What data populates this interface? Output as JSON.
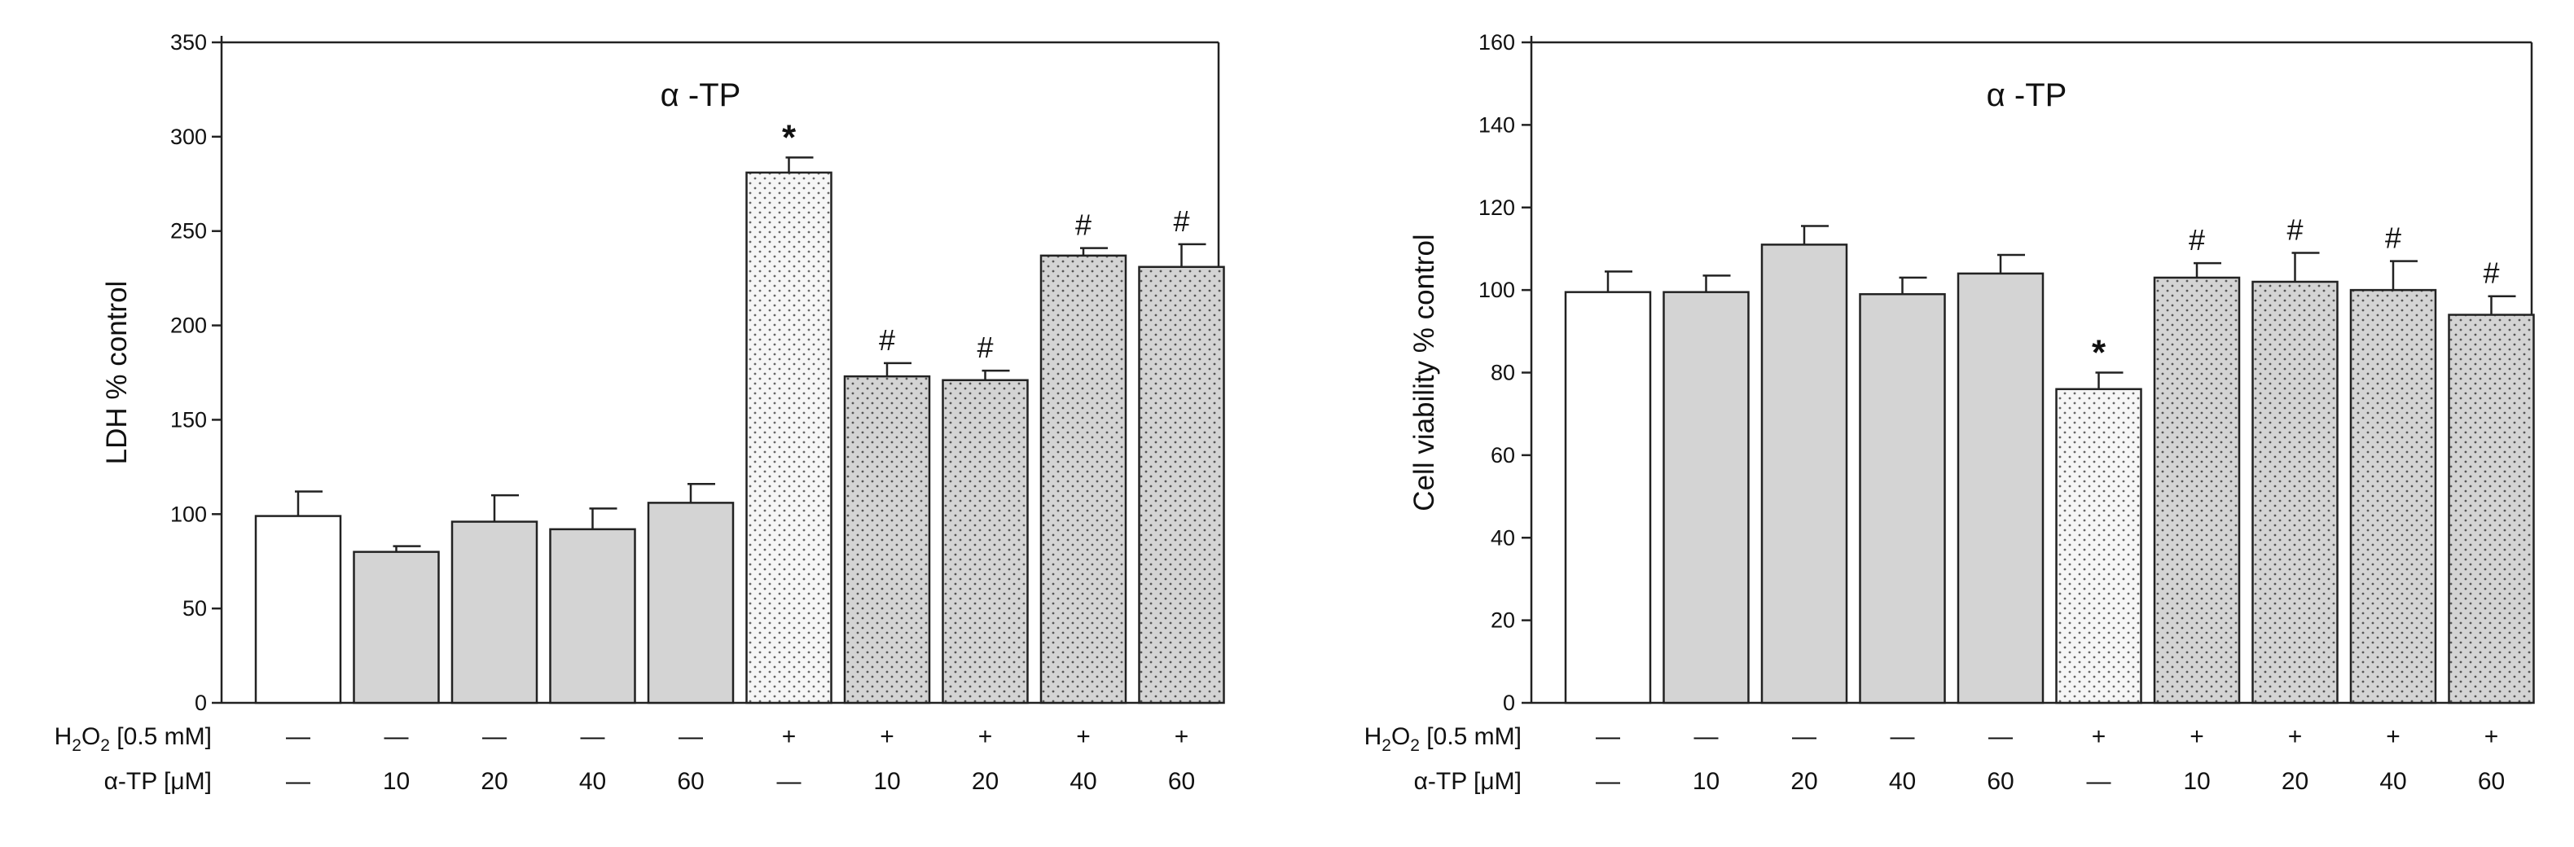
{
  "chart_data": [
    {
      "type": "bar",
      "title": "α -TP",
      "ylabel": "LDH % control",
      "xlabel": "",
      "ylim": [
        0,
        350
      ],
      "yticks": [
        0,
        50,
        100,
        150,
        200,
        250,
        300,
        350
      ],
      "row_labels": {
        "h2o2_prefix": "H",
        "h2o2_sub1": "2",
        "h2o2_mid": "O",
        "h2o2_sub2": "2",
        "h2o2_suffix": " [0.5 mM]",
        "tp": "α-TP [μM]"
      },
      "h2o2": [
        "—",
        "—",
        "—",
        "—",
        "—",
        "+",
        "+",
        "+",
        "+",
        "+"
      ],
      "tp": [
        "—",
        "10",
        "20",
        "40",
        "60",
        "—",
        "10",
        "20",
        "40",
        "60"
      ],
      "values": [
        99,
        80,
        96,
        92,
        106,
        281,
        173,
        171,
        237,
        231
      ],
      "errors": [
        13,
        3,
        14,
        11,
        10,
        8,
        7,
        5,
        4,
        12
      ],
      "styles": [
        "white",
        "gray",
        "gray",
        "gray",
        "gray",
        "light-dotted",
        "gray-dotted",
        "gray-dotted",
        "gray-dotted",
        "gray-dotted"
      ],
      "marks": [
        "",
        "",
        "",
        "",
        "",
        "*",
        "#",
        "#",
        "#",
        "#"
      ]
    },
    {
      "type": "bar",
      "title": "α -TP",
      "ylabel": "Cell viability % control",
      "xlabel": "",
      "ylim": [
        0,
        160
      ],
      "yticks": [
        0,
        20,
        40,
        60,
        80,
        100,
        120,
        140,
        160
      ],
      "row_labels": {
        "h2o2_prefix": "H",
        "h2o2_sub1": "2",
        "h2o2_mid": "O",
        "h2o2_sub2": "2",
        "h2o2_suffix": " [0.5 mM]",
        "tp": "α-TP [μM]"
      },
      "h2o2": [
        "—",
        "—",
        "—",
        "—",
        "—",
        "+",
        "+",
        "+",
        "+",
        "+"
      ],
      "tp": [
        "—",
        "10",
        "20",
        "40",
        "60",
        "—",
        "10",
        "20",
        "40",
        "60"
      ],
      "values": [
        99.5,
        99.5,
        111,
        99,
        104,
        76,
        103,
        102,
        100,
        94
      ],
      "errors": [
        5,
        4,
        4.5,
        4,
        4.5,
        4,
        3.5,
        7,
        7,
        4.5
      ],
      "styles": [
        "white",
        "gray",
        "gray",
        "gray",
        "gray",
        "light-dotted",
        "gray-dotted",
        "gray-dotted",
        "gray-dotted",
        "gray-dotted"
      ],
      "marks": [
        "",
        "",
        "",
        "",
        "",
        "*",
        "#",
        "#",
        "#",
        "#"
      ]
    }
  ]
}
